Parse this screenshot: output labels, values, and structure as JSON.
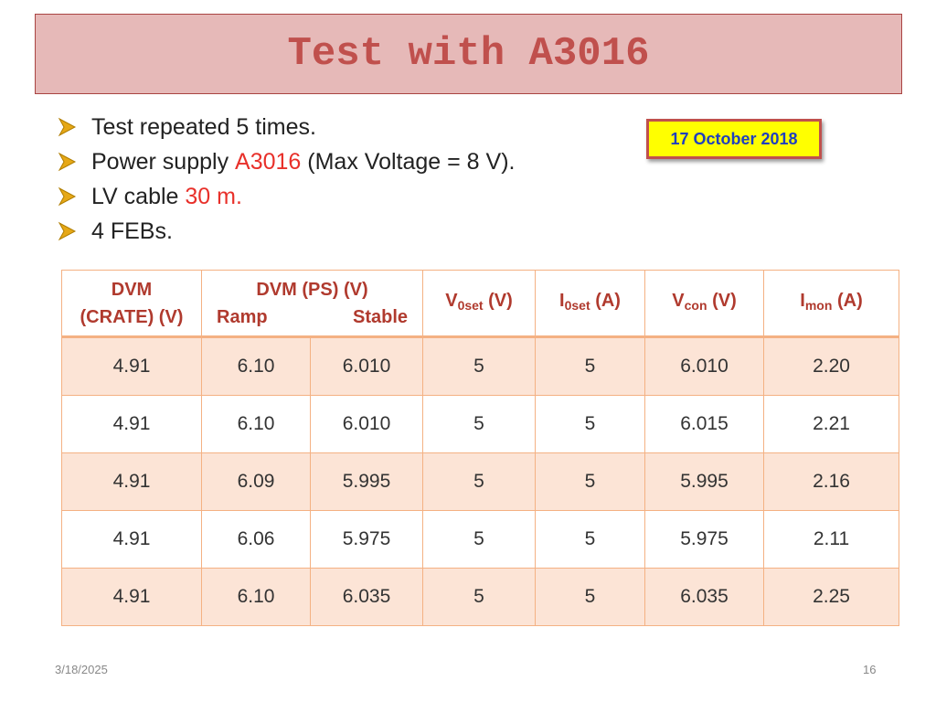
{
  "title": "Test with A3016",
  "date_badge": "17 October 2018",
  "bullets": [
    [
      "Test repeated 5 times."
    ],
    [
      "Power supply ",
      "A3016",
      " (Max Voltage = 8 V)."
    ],
    [
      "LV cable ",
      "30 m."
    ],
    [
      "4 FEBs."
    ]
  ],
  "table": {
    "header": {
      "dvm_crate": [
        "DVM",
        "(CRATE) (V)"
      ],
      "dvm_ps": "DVM (PS) (V)",
      "ramp": "Ramp",
      "stable": "Stable",
      "v0set": [
        "V",
        "0set",
        " (V)"
      ],
      "i0set": [
        "I",
        "0set",
        " (A)"
      ],
      "vcon": [
        "V",
        "con",
        " (V)"
      ],
      "imon": [
        "I",
        "mon",
        " (A)"
      ]
    },
    "rows": [
      [
        "4.91",
        "6.10",
        "6.010",
        "5",
        "5",
        "6.010",
        "2.20"
      ],
      [
        "4.91",
        "6.10",
        "6.010",
        "5",
        "5",
        "6.015",
        "2.21"
      ],
      [
        "4.91",
        "6.09",
        "5.995",
        "5",
        "5",
        "5.995",
        "2.16"
      ],
      [
        "4.91",
        "6.06",
        "5.975",
        "5",
        "5",
        "5.975",
        "2.11"
      ],
      [
        "4.91",
        "6.10",
        "6.035",
        "5",
        "5",
        "6.035",
        "2.25"
      ]
    ]
  },
  "footer": {
    "date": "3/18/2025",
    "page": "16"
  }
}
